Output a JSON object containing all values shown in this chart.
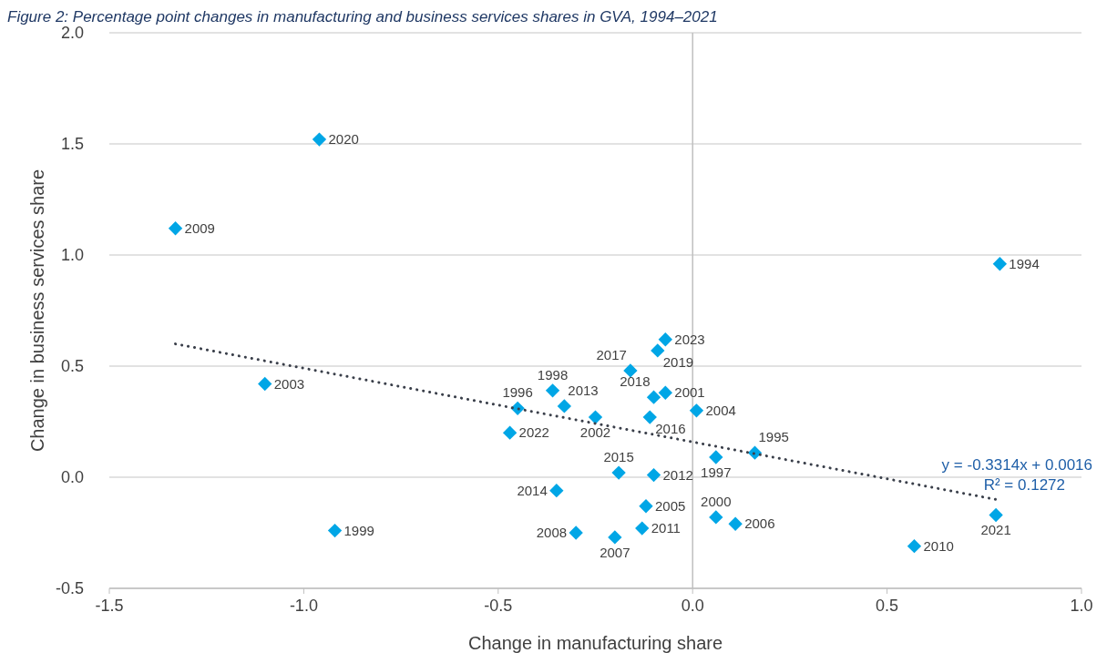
{
  "chart_data": {
    "type": "scatter",
    "title": "Figure 2: Percentage point changes in manufacturing and business services shares in GVA, 1994–2021",
    "xlabel": "Change in manufacturing share",
    "ylabel": "Change in business services share",
    "xlim": [
      -1.5,
      1.0
    ],
    "xticks": [
      {
        "value": -1.5,
        "label": "-1.5"
      },
      {
        "value": -1,
        "label": "-1.0"
      },
      {
        "value": -0.5,
        "label": "-0.5"
      },
      {
        "value": 0,
        "label": "0.0"
      },
      {
        "value": 0.5,
        "label": "0.5"
      },
      {
        "value": 1,
        "label": "1.0"
      }
    ],
    "ylim": [
      -0.5,
      2.0
    ],
    "yticks": [
      {
        "value": -0.5,
        "label": "-0.5"
      },
      {
        "value": 0,
        "label": "0.0"
      },
      {
        "value": 0.5,
        "label": "0.5"
      },
      {
        "value": 1,
        "label": "1.0"
      },
      {
        "value": 1.5,
        "label": "1.5"
      },
      {
        "value": 2,
        "label": "2.0"
      }
    ],
    "grid": "y",
    "marker": "diamond",
    "series": [
      {
        "color": "#00a6e6",
        "x": [
          0.79,
          0.16,
          -0.45,
          0.06,
          -0.36,
          -0.92,
          0.06,
          -0.07,
          -0.25,
          -1.1,
          0.01,
          -0.12,
          0.11,
          -0.2,
          -0.3,
          -1.33,
          0.57,
          -0.13,
          -0.1,
          -0.33,
          -0.35,
          -0.19,
          -0.11,
          -0.16,
          -0.1,
          -0.09,
          -0.96,
          0.78,
          -0.47,
          -0.07
        ],
        "values": [
          0.96,
          0.11,
          0.31,
          0.09,
          0.39,
          -0.24,
          -0.18,
          0.38,
          0.27,
          0.42,
          0.3,
          -0.13,
          -0.21,
          -0.27,
          -0.25,
          1.12,
          -0.31,
          -0.23,
          0.01,
          0.32,
          -0.06,
          0.02,
          0.27,
          0.48,
          0.36,
          0.57,
          1.52,
          -0.17,
          0.2,
          0.62
        ]
      },
      {
        "type": "line",
        "color": "#3a3f4a",
        "line_style": "dotted",
        "marker": "none",
        "x": [
          -1.33,
          0.78
        ],
        "values": [
          0.6,
          -0.1
        ]
      }
    ],
    "annotations": [
      {
        "text": "1994",
        "x": 0.79,
        "y": 0.96
      },
      {
        "text": "1995",
        "x": 0.16,
        "y": 0.11
      },
      {
        "text": "1996",
        "x": -0.45,
        "y": 0.31
      },
      {
        "text": "1997",
        "x": 0.06,
        "y": 0.09
      },
      {
        "text": "1998",
        "x": -0.36,
        "y": 0.39
      },
      {
        "text": "1999",
        "x": -0.92,
        "y": -0.24
      },
      {
        "text": "2000",
        "x": 0.06,
        "y": -0.18
      },
      {
        "text": "2001",
        "x": -0.07,
        "y": 0.38
      },
      {
        "text": "2002",
        "x": -0.25,
        "y": 0.27
      },
      {
        "text": "2003",
        "x": -1.1,
        "y": 0.42
      },
      {
        "text": "2004",
        "x": 0.01,
        "y": 0.3
      },
      {
        "text": "2005",
        "x": -0.12,
        "y": -0.13
      },
      {
        "text": "2006",
        "x": 0.11,
        "y": -0.21
      },
      {
        "text": "2007",
        "x": -0.2,
        "y": -0.27
      },
      {
        "text": "2008",
        "x": -0.3,
        "y": -0.25
      },
      {
        "text": "2009",
        "x": -1.33,
        "y": 1.12
      },
      {
        "text": "2010",
        "x": 0.57,
        "y": -0.31
      },
      {
        "text": "2011",
        "x": -0.13,
        "y": -0.23
      },
      {
        "text": "2012",
        "x": -0.1,
        "y": 0.01
      },
      {
        "text": "2013",
        "x": -0.33,
        "y": 0.32
      },
      {
        "text": "2014",
        "x": -0.35,
        "y": -0.06
      },
      {
        "text": "2015",
        "x": -0.19,
        "y": 0.02
      },
      {
        "text": "2016",
        "x": -0.11,
        "y": 0.27
      },
      {
        "text": "2017",
        "x": -0.16,
        "y": 0.48
      },
      {
        "text": "2018",
        "x": -0.1,
        "y": 0.36
      },
      {
        "text": "2019",
        "x": -0.09,
        "y": 0.57
      },
      {
        "text": "2020",
        "x": -0.96,
        "y": 1.52
      },
      {
        "text": "2021",
        "x": 0.78,
        "y": -0.17
      },
      {
        "text": "2022",
        "x": -0.47,
        "y": 0.2
      },
      {
        "text": "2023",
        "x": -0.07,
        "y": 0.62
      },
      "y = -0.3314x + 0.0016",
      "R² = 0.1272"
    ]
  }
}
